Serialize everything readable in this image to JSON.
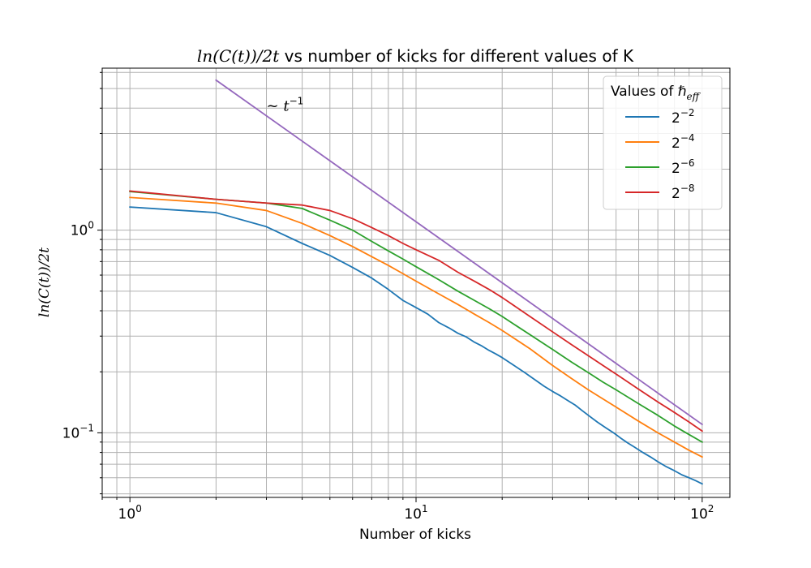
{
  "chart_data": {
    "type": "line",
    "title": {
      "math": "ln(C(t))/2t",
      "rest": " vs number of kicks for different values of K"
    },
    "xlabel": "Number of kicks",
    "ylabel": "ln(C(t))/2t",
    "x_scale": "log",
    "y_scale": "log",
    "xlim": [
      0.8,
      125
    ],
    "ylim": [
      0.048,
      6.3
    ],
    "grid": "both major and minor",
    "x_ticks": [
      {
        "value": 1,
        "base": "10",
        "exp": "0"
      },
      {
        "value": 10,
        "base": "10",
        "exp": "1"
      },
      {
        "value": 100,
        "base": "10",
        "exp": "2"
      }
    ],
    "y_ticks": [
      {
        "value": 0.1,
        "base": "10",
        "exp": "−1"
      },
      {
        "value": 1,
        "base": "10",
        "exp": "0"
      }
    ],
    "legend": {
      "title": "Values of ℏ",
      "title_sub": "eff",
      "placement": "top-right"
    },
    "annotation": {
      "prefix": "~ ",
      "var": "t",
      "exp": "−1",
      "x": 3,
      "y": 4.1
    },
    "series": [
      {
        "name": {
          "base": "2",
          "exp": "−2"
        },
        "color": "#1f77b4",
        "x": [
          1,
          2,
          3,
          4,
          5,
          6,
          7,
          8,
          9,
          10,
          11,
          12,
          13,
          14,
          15,
          16,
          17,
          18,
          19,
          20,
          22,
          24,
          26,
          28,
          30,
          32,
          34,
          36,
          38,
          40,
          43,
          46,
          49,
          52,
          55,
          58,
          62,
          66,
          70,
          75,
          80,
          85,
          90,
          95,
          100
        ],
        "values": [
          1.3,
          1.22,
          1.04,
          0.86,
          0.75,
          0.655,
          0.58,
          0.51,
          0.45,
          0.415,
          0.385,
          0.35,
          0.33,
          0.31,
          0.297,
          0.28,
          0.268,
          0.255,
          0.245,
          0.235,
          0.215,
          0.198,
          0.183,
          0.17,
          0.16,
          0.152,
          0.144,
          0.137,
          0.129,
          0.122,
          0.113,
          0.106,
          0.1,
          0.094,
          0.089,
          0.085,
          0.08,
          0.076,
          0.072,
          0.068,
          0.065,
          0.062,
          0.06,
          0.058,
          0.056
        ]
      },
      {
        "name": {
          "base": "2",
          "exp": "−4"
        },
        "color": "#ff7f0e",
        "x": [
          1,
          2,
          3,
          4,
          5,
          6,
          7,
          8,
          9,
          10,
          12,
          14,
          16,
          18,
          20,
          25,
          30,
          35,
          40,
          45,
          50,
          60,
          70,
          80,
          90,
          100
        ],
        "values": [
          1.45,
          1.36,
          1.25,
          1.08,
          0.94,
          0.83,
          0.74,
          0.67,
          0.61,
          0.56,
          0.485,
          0.43,
          0.385,
          0.35,
          0.32,
          0.26,
          0.215,
          0.185,
          0.163,
          0.147,
          0.134,
          0.114,
          0.1,
          0.09,
          0.082,
          0.076
        ]
      },
      {
        "name": {
          "base": "2",
          "exp": "−6"
        },
        "color": "#2ca02c",
        "x": [
          1,
          2,
          3,
          4,
          5,
          6,
          7,
          8,
          9,
          10,
          12,
          14,
          16,
          18,
          20,
          25,
          30,
          35,
          40,
          45,
          50,
          60,
          70,
          80,
          90,
          100
        ],
        "values": [
          1.55,
          1.42,
          1.36,
          1.28,
          1.12,
          1.0,
          0.88,
          0.79,
          0.72,
          0.66,
          0.57,
          0.5,
          0.45,
          0.41,
          0.375,
          0.305,
          0.258,
          0.223,
          0.198,
          0.178,
          0.163,
          0.139,
          0.122,
          0.108,
          0.098,
          0.09
        ]
      },
      {
        "name": {
          "base": "2",
          "exp": "−8"
        },
        "color": "#d62728",
        "x": [
          1,
          2,
          3,
          4,
          5,
          6,
          7,
          8,
          9,
          10,
          12,
          14,
          16,
          18,
          20,
          25,
          30,
          35,
          40,
          45,
          50,
          60,
          70,
          80,
          90,
          100
        ],
        "values": [
          1.56,
          1.42,
          1.36,
          1.33,
          1.25,
          1.14,
          1.03,
          0.94,
          0.86,
          0.8,
          0.71,
          0.62,
          0.56,
          0.51,
          0.465,
          0.375,
          0.315,
          0.272,
          0.24,
          0.215,
          0.195,
          0.164,
          0.142,
          0.126,
          0.113,
          0.102
        ]
      },
      {
        "color": "#9467bd",
        "x": [
          2,
          100
        ],
        "values": [
          5.5,
          0.11
        ]
      }
    ]
  }
}
